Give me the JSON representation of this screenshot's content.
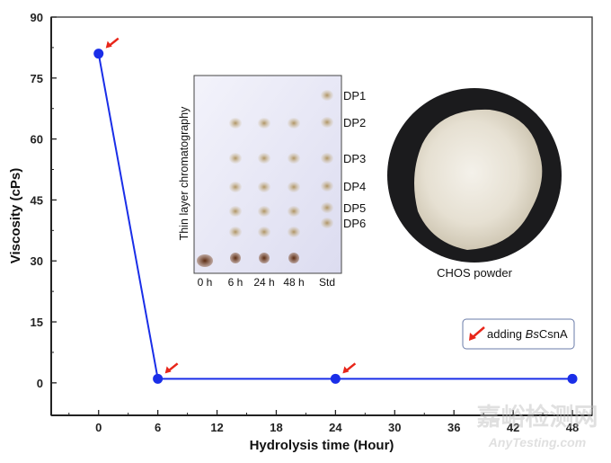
{
  "chart_data": {
    "type": "line",
    "title": "",
    "xlabel": "Hydrolysis time (Hour)",
    "ylabel": "Viscosity (cPs)",
    "xlim": [
      -4.8,
      50
    ],
    "ylim": [
      -8,
      90
    ],
    "xticks": [
      0,
      6,
      12,
      18,
      24,
      30,
      36,
      42,
      48
    ],
    "yticks": [
      0,
      15,
      30,
      45,
      60,
      75,
      90
    ],
    "grid": false,
    "series": [
      {
        "name": "Viscosity",
        "color": "#1a2ee8",
        "x": [
          0,
          6,
          24,
          48
        ],
        "y": [
          81,
          1,
          1,
          1
        ]
      }
    ],
    "enzyme_additions_x": [
      0,
      6,
      24
    ],
    "legend": {
      "placement": "lower-right",
      "text_prefix": "adding ",
      "text_italic": "Bs",
      "text_suffix": "CsnA",
      "arrow_color": "#e8261a"
    },
    "insets": {
      "tlc": {
        "title": "Thin layer chromatography",
        "lanes": [
          "0 h",
          "6 h",
          "24 h",
          "48 h",
          "Std"
        ],
        "bands": [
          "DP1",
          "DP2",
          "DP3",
          "DP4",
          "DP5",
          "DP6"
        ]
      },
      "photo": {
        "caption": "CHOS powder"
      }
    }
  },
  "watermark": {
    "cn": "嘉峪检测网",
    "en": "AnyTesting.com"
  }
}
